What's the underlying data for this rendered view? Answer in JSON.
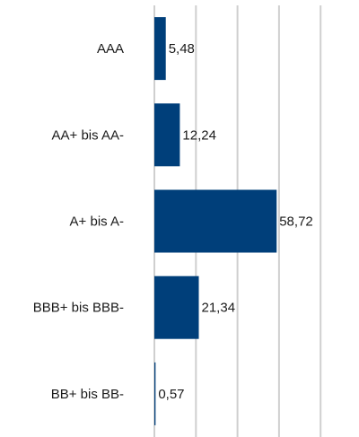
{
  "chart_data": {
    "type": "bar",
    "orientation": "horizontal",
    "categories": [
      "AAA",
      "AA+ bis AA-",
      "A+ bis A-",
      "BBB+ bis BBB-",
      "BB+ bis BB-"
    ],
    "values": [
      5.48,
      12.24,
      58.72,
      21.34,
      0.57
    ],
    "value_labels": [
      "5,48",
      "12,24",
      "58,72",
      "21,34",
      "0,57"
    ],
    "title": "",
    "xlabel": "",
    "ylabel": "",
    "xlim": [
      0,
      100
    ],
    "grid": true,
    "legend": "none",
    "bar_color": "#003f7a",
    "grid_color": "#cfcfcf"
  }
}
